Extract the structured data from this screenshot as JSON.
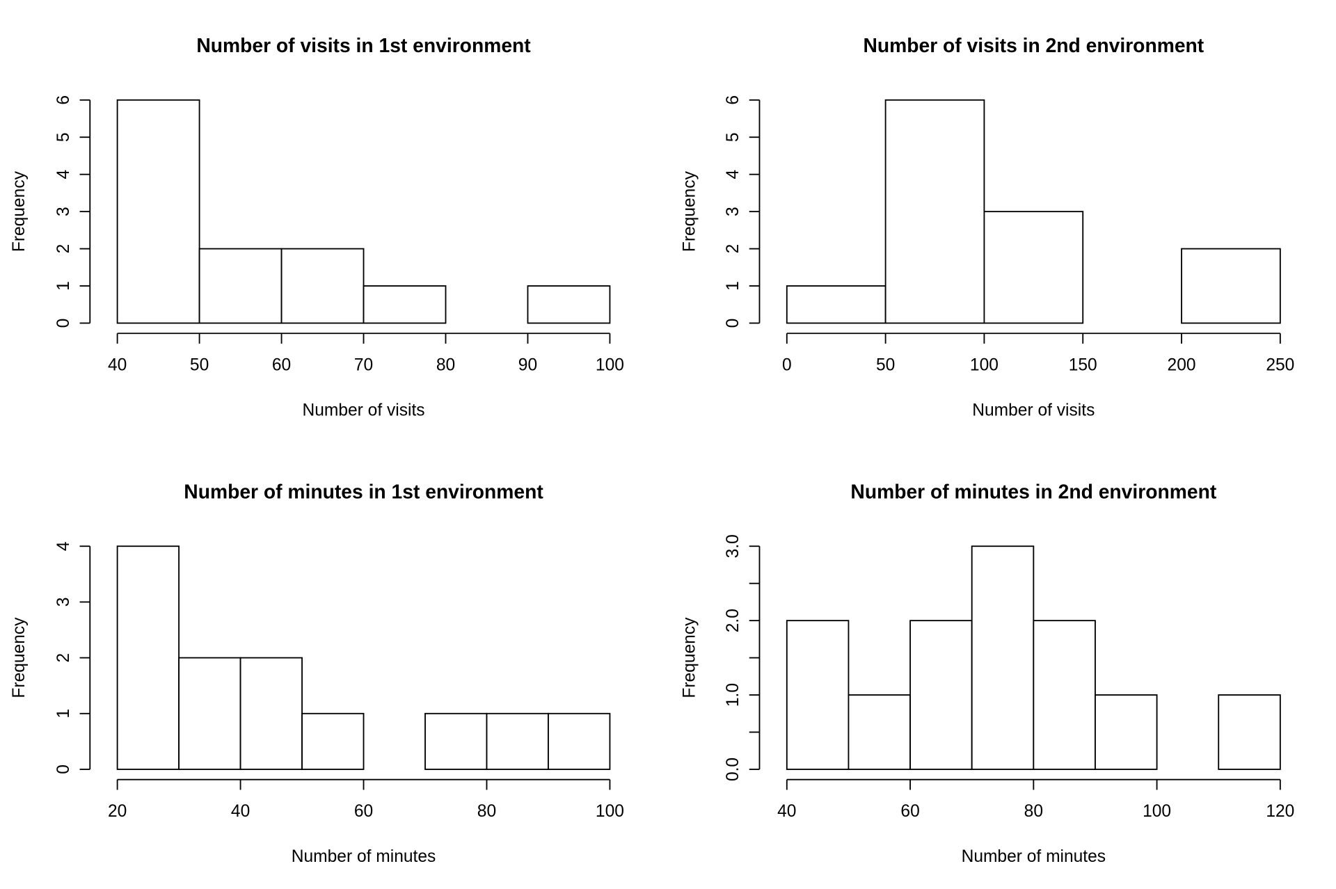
{
  "chart_data": [
    {
      "type": "histogram",
      "title": "Number of visits in 1st environment",
      "xlabel": "Number of visits",
      "ylabel": "Frequency",
      "bins": [
        40,
        50,
        60,
        70,
        80,
        90,
        100
      ],
      "values": [
        6,
        2,
        2,
        1,
        0,
        1
      ],
      "xlim": [
        40,
        100
      ],
      "xticks": [
        40,
        50,
        60,
        70,
        80,
        90,
        100
      ],
      "ylim": [
        0,
        6
      ],
      "yticks": [
        0,
        1,
        2,
        3,
        4,
        5,
        6
      ]
    },
    {
      "type": "histogram",
      "title": "Number of visits in 2nd environment",
      "xlabel": "Number of visits",
      "ylabel": "Frequency",
      "bins": [
        0,
        50,
        100,
        150,
        200,
        250
      ],
      "values": [
        1,
        6,
        3,
        0,
        2
      ],
      "xlim": [
        0,
        250
      ],
      "xticks": [
        0,
        50,
        100,
        150,
        200,
        250
      ],
      "ylim": [
        0,
        6
      ],
      "yticks": [
        0,
        1,
        2,
        3,
        4,
        5,
        6
      ]
    },
    {
      "type": "histogram",
      "title": "Number of minutes in 1st environment",
      "xlabel": "Number of minutes",
      "ylabel": "Frequency",
      "bins": [
        20,
        30,
        40,
        50,
        60,
        70,
        80,
        90,
        100
      ],
      "values": [
        4,
        2,
        2,
        1,
        0,
        1,
        1,
        1
      ],
      "xlim": [
        20,
        100
      ],
      "xticks": [
        20,
        40,
        60,
        80,
        100
      ],
      "ylim": [
        0,
        4
      ],
      "yticks": [
        0,
        1,
        2,
        3,
        4
      ]
    },
    {
      "type": "histogram",
      "title": "Number of minutes in 2nd environment",
      "xlabel": "Number of minutes",
      "ylabel": "Frequency",
      "bins": [
        40,
        50,
        60,
        70,
        80,
        90,
        100,
        110,
        120
      ],
      "values": [
        2,
        1,
        2,
        3,
        2,
        1,
        0,
        1
      ],
      "xlim": [
        40,
        120
      ],
      "xticks": [
        40,
        60,
        80,
        100,
        120
      ],
      "ylim": [
        0,
        3
      ],
      "yticks": [
        {
          "value": 0,
          "label": "0.0"
        },
        {
          "value": 0.5,
          "label": null
        },
        {
          "value": 1,
          "label": "1.0"
        },
        {
          "value": 1.5,
          "label": null
        },
        {
          "value": 2,
          "label": "2.0"
        },
        {
          "value": 2.5,
          "label": null
        },
        {
          "value": 3,
          "label": "3.0"
        }
      ]
    }
  ]
}
